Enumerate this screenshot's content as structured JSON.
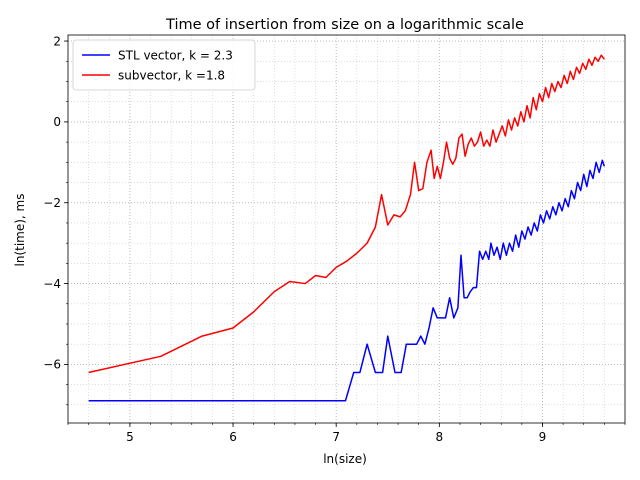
{
  "chart_data": {
    "type": "line",
    "title": "Time of insertion from size on a logarithmic scale",
    "xlabel": "ln(size)",
    "ylabel": "ln(time), ms",
    "xlim": [
      4.4,
      9.8
    ],
    "ylim": [
      -7.45,
      2.15
    ],
    "xticks": [
      5,
      6,
      7,
      8,
      9
    ],
    "yticks": [
      -6,
      -4,
      -2,
      0,
      2
    ],
    "xminor_step": 0.2,
    "yminor_step": 0.5,
    "grid": true,
    "legend_position": "top-left",
    "series": [
      {
        "name": "STL vector, k = 2.3",
        "color": "#0000ff",
        "x": [
          4.6,
          5.3,
          5.7,
          6.0,
          6.2,
          6.4,
          6.55,
          6.7,
          6.8,
          6.9,
          7.0,
          7.09,
          7.17,
          7.23,
          7.3,
          7.38,
          7.45,
          7.5,
          7.57,
          7.63,
          7.68,
          7.73,
          7.78,
          7.82,
          7.86,
          7.9,
          7.94,
          7.98,
          8.02,
          8.06,
          8.1,
          8.14,
          8.18,
          8.21,
          8.24,
          8.27,
          8.3,
          8.33,
          8.36,
          8.39,
          8.42,
          8.45,
          8.48,
          8.5,
          8.53,
          8.56,
          8.59,
          8.62,
          8.65,
          8.68,
          8.71,
          8.74,
          8.77,
          8.8,
          8.83,
          8.86,
          8.89,
          8.92,
          8.95,
          8.98,
          9.01,
          9.04,
          9.07,
          9.1,
          9.13,
          9.16,
          9.19,
          9.22,
          9.25,
          9.28,
          9.31,
          9.34,
          9.37,
          9.4,
          9.43,
          9.46,
          9.49,
          9.52,
          9.55,
          9.58,
          9.6
        ],
        "y": [
          -6.9,
          -6.9,
          -6.9,
          -6.9,
          -6.9,
          -6.9,
          -6.9,
          -6.9,
          -6.9,
          -6.9,
          -6.9,
          -6.9,
          -6.2,
          -6.2,
          -5.5,
          -6.2,
          -6.2,
          -5.3,
          -6.2,
          -6.2,
          -5.5,
          -5.5,
          -5.5,
          -5.3,
          -5.5,
          -5.1,
          -4.6,
          -4.85,
          -4.85,
          -4.85,
          -4.35,
          -4.85,
          -4.6,
          -3.3,
          -4.35,
          -4.35,
          -4.2,
          -4.1,
          -4.1,
          -3.2,
          -3.4,
          -3.2,
          -3.4,
          -3.0,
          -3.3,
          -3.1,
          -3.4,
          -3.0,
          -3.3,
          -3.0,
          -3.2,
          -2.8,
          -3.1,
          -2.7,
          -2.9,
          -2.6,
          -2.8,
          -2.5,
          -2.7,
          -2.3,
          -2.5,
          -2.2,
          -2.4,
          -2.1,
          -2.3,
          -2.0,
          -2.2,
          -1.9,
          -2.1,
          -1.7,
          -1.9,
          -1.5,
          -1.7,
          -1.3,
          -1.6,
          -1.2,
          -1.4,
          -1.0,
          -1.25,
          -0.95,
          -1.1
        ]
      },
      {
        "name": "subvector, k =1.8",
        "color": "#ff0000",
        "x": [
          4.6,
          5.3,
          5.7,
          6.0,
          6.2,
          6.4,
          6.55,
          6.7,
          6.8,
          6.9,
          7.0,
          7.1,
          7.2,
          7.3,
          7.38,
          7.44,
          7.5,
          7.56,
          7.62,
          7.67,
          7.72,
          7.76,
          7.8,
          7.84,
          7.88,
          7.92,
          7.95,
          7.98,
          8.01,
          8.04,
          8.07,
          8.1,
          8.13,
          8.16,
          8.19,
          8.22,
          8.25,
          8.28,
          8.31,
          8.34,
          8.37,
          8.4,
          8.43,
          8.46,
          8.49,
          8.52,
          8.55,
          8.58,
          8.61,
          8.64,
          8.67,
          8.7,
          8.73,
          8.76,
          8.79,
          8.82,
          8.85,
          8.88,
          8.91,
          8.94,
          8.97,
          9.0,
          9.03,
          9.06,
          9.09,
          9.12,
          9.15,
          9.18,
          9.21,
          9.24,
          9.27,
          9.3,
          9.33,
          9.36,
          9.39,
          9.42,
          9.45,
          9.48,
          9.51,
          9.54,
          9.57,
          9.6
        ],
        "y": [
          -6.2,
          -5.8,
          -5.3,
          -5.1,
          -4.7,
          -4.2,
          -3.95,
          -4.0,
          -3.8,
          -3.85,
          -3.6,
          -3.45,
          -3.25,
          -3.0,
          -2.6,
          -1.8,
          -2.55,
          -2.3,
          -2.35,
          -2.2,
          -1.8,
          -1.0,
          -1.7,
          -1.65,
          -1.0,
          -0.7,
          -1.4,
          -1.1,
          -1.4,
          -1.0,
          -0.5,
          -0.9,
          -1.05,
          -0.9,
          -0.4,
          -0.3,
          -0.85,
          -0.55,
          -0.4,
          -0.6,
          -0.5,
          -0.25,
          -0.6,
          -0.45,
          -0.6,
          -0.2,
          -0.5,
          -0.3,
          -0.1,
          -0.35,
          0.05,
          -0.2,
          0.1,
          -0.1,
          0.25,
          0.0,
          0.4,
          0.1,
          0.6,
          0.3,
          0.7,
          0.5,
          0.85,
          0.6,
          0.95,
          0.75,
          1.0,
          0.85,
          1.15,
          0.95,
          1.25,
          1.05,
          1.35,
          1.2,
          1.45,
          1.3,
          1.55,
          1.4,
          1.6,
          1.5,
          1.65,
          1.55
        ]
      }
    ]
  }
}
